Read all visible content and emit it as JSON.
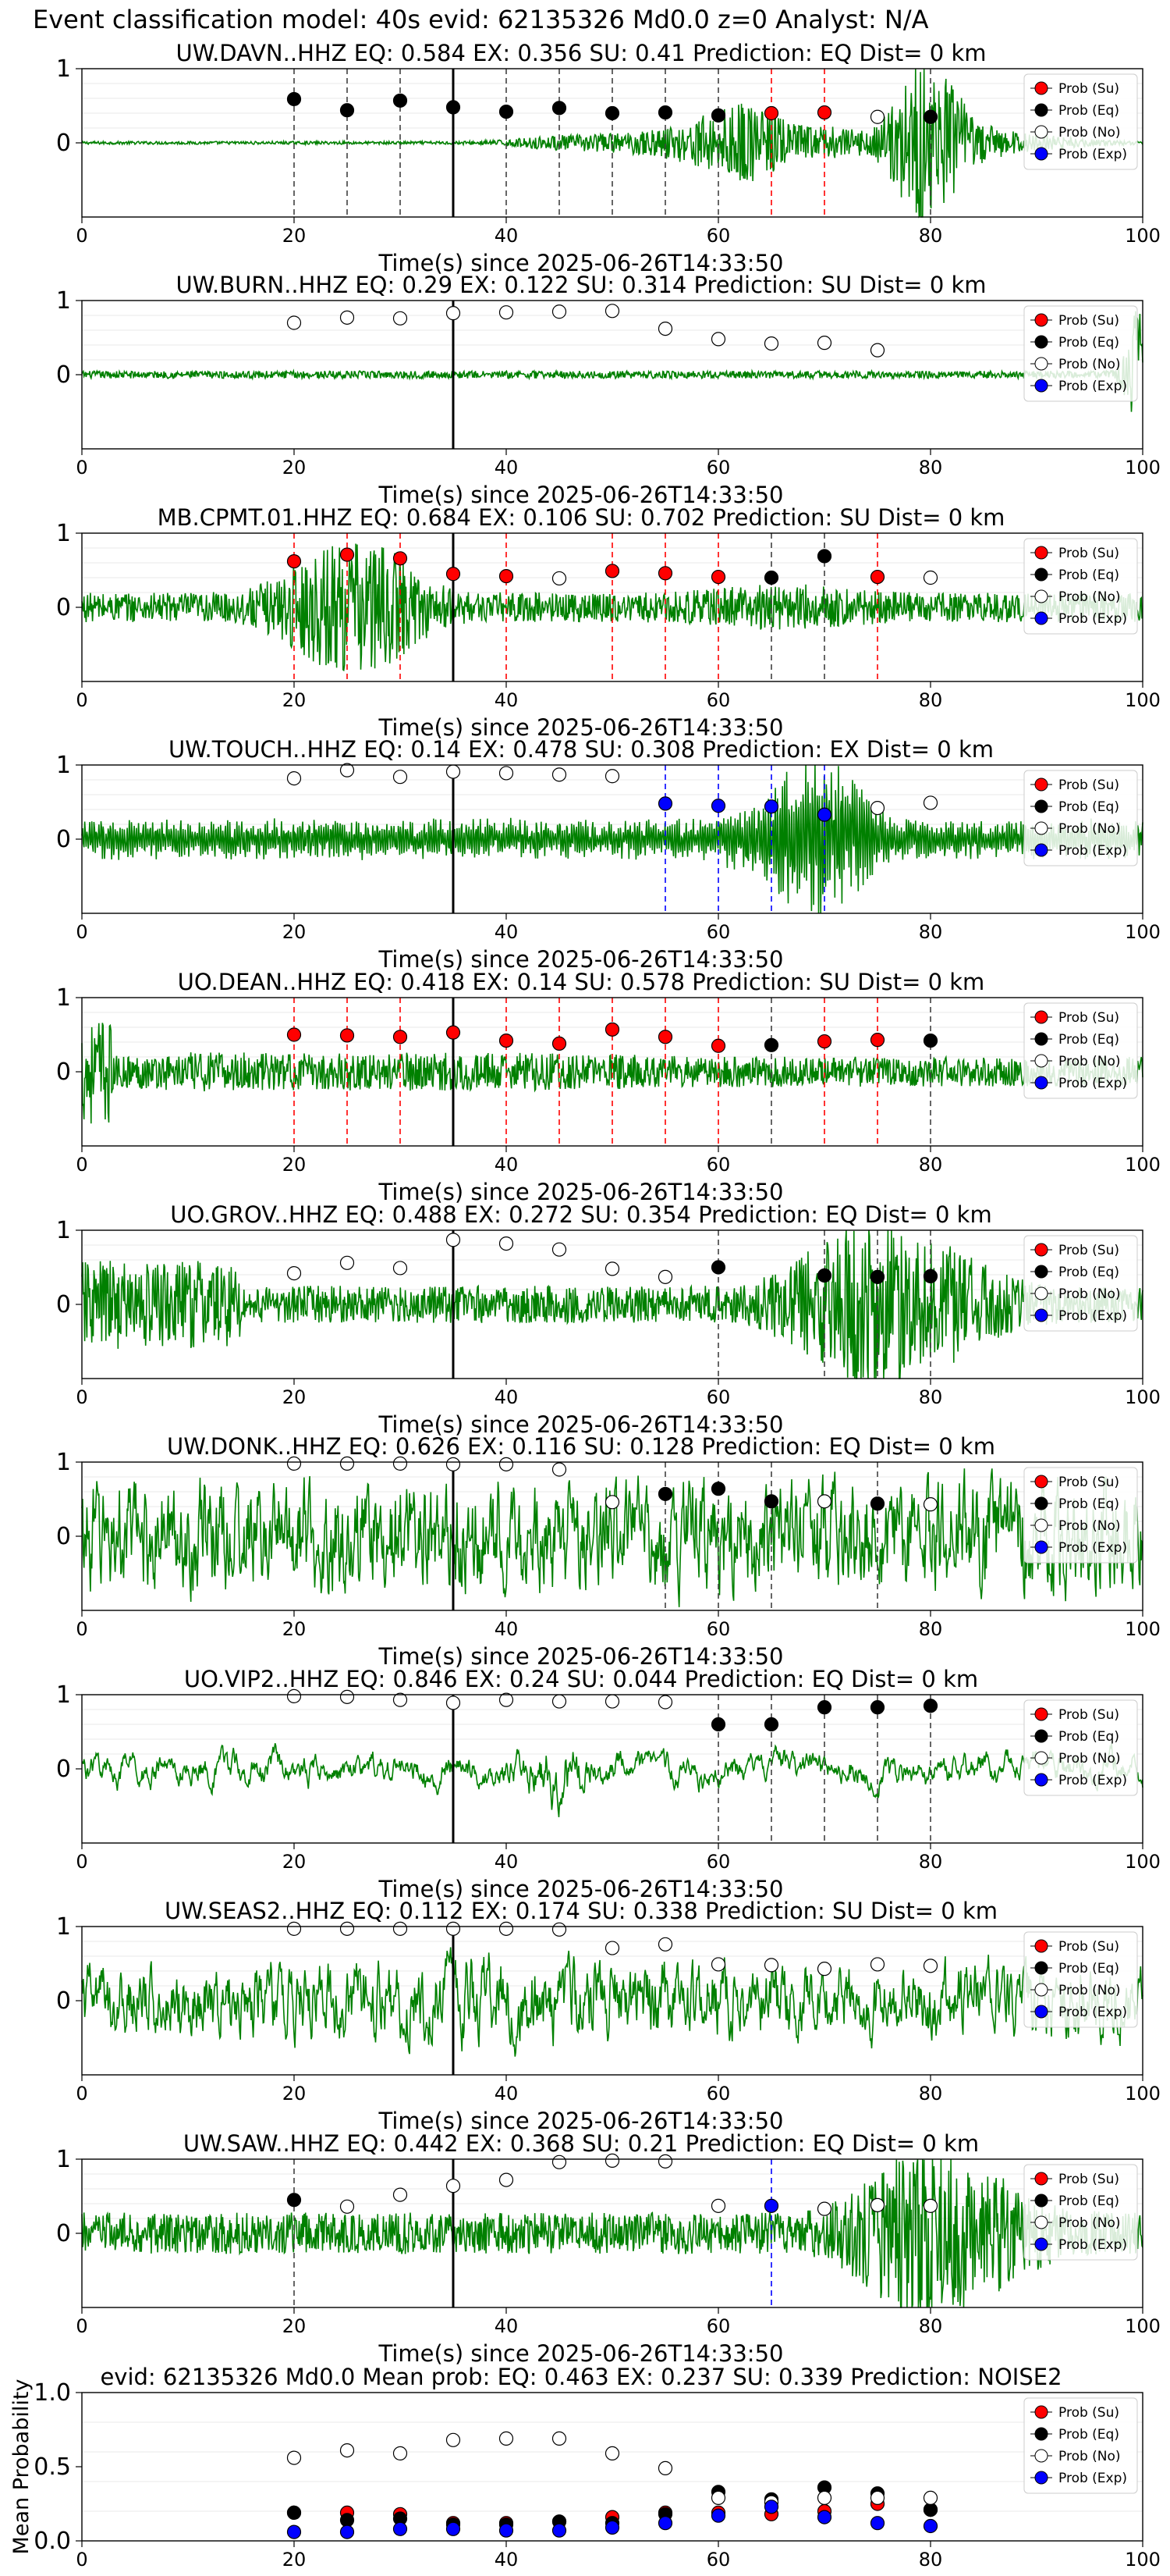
{
  "figure": {
    "suptitle": "Event classification model: 40s evid: 62135326 Md0.0 z=0 Analyst: N/A"
  },
  "colors": {
    "waveform": "#008000",
    "su": "#ff0000",
    "eq": "#000000",
    "no": "#ffffff",
    "exp": "#0000ff",
    "su_line": "#ff0000",
    "eq_line": "#404040",
    "exp_line": "#0000ff",
    "grid": "#b0b0b0"
  },
  "legend_labels": [
    "Prob (Su)",
    "Prob (Eq)",
    "Prob (No)",
    "Prob (Exp)"
  ],
  "chart_data": [
    {
      "type": "scatter",
      "title": "UW.DAVN..HHZ   EQ: 0.584  EX: 0.356  SU: 0.41   Prediction: EQ    Dist= 0 km",
      "xlabel": "Time(s) since 2025-06-26T14:33:50",
      "ylabel": "",
      "xlim": [
        0,
        100
      ],
      "ylim": [
        -1,
        1
      ],
      "xticks": [
        "0",
        "20",
        "40",
        "60",
        "80",
        "100"
      ],
      "yticks": [
        "0",
        "1"
      ],
      "legend_position": "upper right",
      "origin_line": 35,
      "waveform_profile": "davn",
      "points": [
        {
          "x": 20,
          "y": 0.59,
          "cls": "eq"
        },
        {
          "x": 25,
          "y": 0.44,
          "cls": "eq"
        },
        {
          "x": 30,
          "y": 0.57,
          "cls": "eq"
        },
        {
          "x": 35,
          "y": 0.48,
          "cls": "eq"
        },
        {
          "x": 40,
          "y": 0.42,
          "cls": "eq"
        },
        {
          "x": 45,
          "y": 0.47,
          "cls": "eq"
        },
        {
          "x": 50,
          "y": 0.4,
          "cls": "eq"
        },
        {
          "x": 55,
          "y": 0.41,
          "cls": "eq"
        },
        {
          "x": 60,
          "y": 0.37,
          "cls": "eq"
        },
        {
          "x": 65,
          "y": 0.4,
          "cls": "su"
        },
        {
          "x": 70,
          "y": 0.41,
          "cls": "su"
        },
        {
          "x": 75,
          "y": 0.35,
          "cls": "no"
        },
        {
          "x": 80,
          "y": 0.35,
          "cls": "eq"
        }
      ]
    },
    {
      "type": "scatter",
      "title": "UW.BURN..HHZ   EQ: 0.29  EX: 0.122  SU: 0.314   Prediction: SU    Dist= 0 km",
      "xlabel": "Time(s) since 2025-06-26T14:33:50",
      "ylabel": "",
      "xlim": [
        0,
        100
      ],
      "ylim": [
        -1,
        1
      ],
      "xticks": [
        "0",
        "20",
        "40",
        "60",
        "80",
        "100"
      ],
      "yticks": [
        "0",
        "1"
      ],
      "legend_position": "upper right",
      "origin_line": 35,
      "waveform_profile": "burn",
      "points": [
        {
          "x": 20,
          "y": 0.7,
          "cls": "no"
        },
        {
          "x": 25,
          "y": 0.77,
          "cls": "no"
        },
        {
          "x": 30,
          "y": 0.76,
          "cls": "no"
        },
        {
          "x": 35,
          "y": 0.83,
          "cls": "no"
        },
        {
          "x": 40,
          "y": 0.84,
          "cls": "no"
        },
        {
          "x": 45,
          "y": 0.85,
          "cls": "no"
        },
        {
          "x": 50,
          "y": 0.86,
          "cls": "no"
        },
        {
          "x": 55,
          "y": 0.62,
          "cls": "no"
        },
        {
          "x": 60,
          "y": 0.48,
          "cls": "no"
        },
        {
          "x": 65,
          "y": 0.42,
          "cls": "no"
        },
        {
          "x": 70,
          "y": 0.43,
          "cls": "no"
        },
        {
          "x": 75,
          "y": 0.33,
          "cls": "no"
        }
      ]
    },
    {
      "type": "scatter",
      "title": "MB.CPMT.01.HHZ   EQ: 0.684  EX: 0.106  SU: 0.702   Prediction: SU    Dist= 0 km",
      "xlabel": "Time(s) since 2025-06-26T14:33:50",
      "ylabel": "",
      "xlim": [
        0,
        100
      ],
      "ylim": [
        -1,
        1
      ],
      "xticks": [
        "0",
        "20",
        "40",
        "60",
        "80",
        "100"
      ],
      "yticks": [
        "0",
        "1"
      ],
      "legend_position": "upper right",
      "origin_line": 35,
      "waveform_profile": "cpmt",
      "points": [
        {
          "x": 20,
          "y": 0.62,
          "cls": "su"
        },
        {
          "x": 25,
          "y": 0.71,
          "cls": "su"
        },
        {
          "x": 30,
          "y": 0.66,
          "cls": "su"
        },
        {
          "x": 35,
          "y": 0.45,
          "cls": "su"
        },
        {
          "x": 40,
          "y": 0.42,
          "cls": "su"
        },
        {
          "x": 45,
          "y": 0.39,
          "cls": "no"
        },
        {
          "x": 50,
          "y": 0.49,
          "cls": "su"
        },
        {
          "x": 55,
          "y": 0.46,
          "cls": "su"
        },
        {
          "x": 60,
          "y": 0.41,
          "cls": "su"
        },
        {
          "x": 65,
          "y": 0.4,
          "cls": "eq"
        },
        {
          "x": 70,
          "y": 0.69,
          "cls": "eq"
        },
        {
          "x": 75,
          "y": 0.41,
          "cls": "su"
        },
        {
          "x": 80,
          "y": 0.4,
          "cls": "no"
        }
      ]
    },
    {
      "type": "scatter",
      "title": "UW.TOUCH..HHZ   EQ: 0.14  EX: 0.478  SU: 0.308   Prediction: EX    Dist= 0 km",
      "xlabel": "Time(s) since 2025-06-26T14:33:50",
      "ylabel": "",
      "xlim": [
        0,
        100
      ],
      "ylim": [
        -1,
        1
      ],
      "xticks": [
        "0",
        "20",
        "40",
        "60",
        "80",
        "100"
      ],
      "yticks": [
        "0",
        "1"
      ],
      "legend_position": "upper right",
      "origin_line": 35,
      "waveform_profile": "touch",
      "points": [
        {
          "x": 20,
          "y": 0.82,
          "cls": "no"
        },
        {
          "x": 25,
          "y": 0.93,
          "cls": "no"
        },
        {
          "x": 30,
          "y": 0.84,
          "cls": "no"
        },
        {
          "x": 35,
          "y": 0.91,
          "cls": "no"
        },
        {
          "x": 40,
          "y": 0.89,
          "cls": "no"
        },
        {
          "x": 45,
          "y": 0.87,
          "cls": "no"
        },
        {
          "x": 50,
          "y": 0.85,
          "cls": "no"
        },
        {
          "x": 55,
          "y": 0.48,
          "cls": "exp"
        },
        {
          "x": 60,
          "y": 0.45,
          "cls": "exp"
        },
        {
          "x": 65,
          "y": 0.44,
          "cls": "exp"
        },
        {
          "x": 70,
          "y": 0.33,
          "cls": "exp"
        },
        {
          "x": 75,
          "y": 0.42,
          "cls": "no"
        },
        {
          "x": 80,
          "y": 0.49,
          "cls": "no"
        }
      ]
    },
    {
      "type": "scatter",
      "title": "UO.DEAN..HHZ   EQ: 0.418  EX: 0.14  SU: 0.578   Prediction: SU    Dist= 0 km",
      "xlabel": "Time(s) since 2025-06-26T14:33:50",
      "ylabel": "",
      "xlim": [
        0,
        100
      ],
      "ylim": [
        -1,
        1
      ],
      "xticks": [
        "0",
        "20",
        "40",
        "60",
        "80",
        "100"
      ],
      "yticks": [
        "0",
        "1"
      ],
      "legend_position": "upper right",
      "origin_line": 35,
      "waveform_profile": "dean",
      "points": [
        {
          "x": 20,
          "y": 0.5,
          "cls": "su"
        },
        {
          "x": 25,
          "y": 0.49,
          "cls": "su"
        },
        {
          "x": 30,
          "y": 0.47,
          "cls": "su"
        },
        {
          "x": 35,
          "y": 0.53,
          "cls": "su"
        },
        {
          "x": 40,
          "y": 0.42,
          "cls": "su"
        },
        {
          "x": 45,
          "y": 0.38,
          "cls": "su"
        },
        {
          "x": 50,
          "y": 0.57,
          "cls": "su"
        },
        {
          "x": 55,
          "y": 0.47,
          "cls": "su"
        },
        {
          "x": 60,
          "y": 0.35,
          "cls": "su"
        },
        {
          "x": 65,
          "y": 0.36,
          "cls": "eq"
        },
        {
          "x": 70,
          "y": 0.41,
          "cls": "su"
        },
        {
          "x": 75,
          "y": 0.43,
          "cls": "su"
        },
        {
          "x": 80,
          "y": 0.42,
          "cls": "eq"
        }
      ]
    },
    {
      "type": "scatter",
      "title": "UO.GROV..HHZ   EQ: 0.488  EX: 0.272  SU: 0.354   Prediction: EQ    Dist= 0 km",
      "xlabel": "Time(s) since 2025-06-26T14:33:50",
      "ylabel": "",
      "xlim": [
        0,
        100
      ],
      "ylim": [
        -1,
        1
      ],
      "xticks": [
        "0",
        "20",
        "40",
        "60",
        "80",
        "100"
      ],
      "yticks": [
        "0",
        "1"
      ],
      "legend_position": "upper right",
      "origin_line": 35,
      "waveform_profile": "grov",
      "points": [
        {
          "x": 20,
          "y": 0.42,
          "cls": "no"
        },
        {
          "x": 25,
          "y": 0.56,
          "cls": "no"
        },
        {
          "x": 30,
          "y": 0.49,
          "cls": "no"
        },
        {
          "x": 35,
          "y": 0.87,
          "cls": "no"
        },
        {
          "x": 40,
          "y": 0.82,
          "cls": "no"
        },
        {
          "x": 45,
          "y": 0.74,
          "cls": "no"
        },
        {
          "x": 50,
          "y": 0.48,
          "cls": "no"
        },
        {
          "x": 55,
          "y": 0.37,
          "cls": "no"
        },
        {
          "x": 60,
          "y": 0.5,
          "cls": "eq"
        },
        {
          "x": 70,
          "y": 0.39,
          "cls": "eq"
        },
        {
          "x": 75,
          "y": 0.37,
          "cls": "eq"
        },
        {
          "x": 80,
          "y": 0.38,
          "cls": "eq"
        }
      ]
    },
    {
      "type": "scatter",
      "title": "UW.DONK..HHZ   EQ: 0.626  EX: 0.116  SU: 0.128   Prediction: EQ    Dist= 0 km",
      "xlabel": "Time(s) since 2025-06-26T14:33:50",
      "ylabel": "",
      "xlim": [
        0,
        100
      ],
      "ylim": [
        -1,
        1
      ],
      "xticks": [
        "0",
        "20",
        "40",
        "60",
        "80",
        "100"
      ],
      "yticks": [
        "0",
        "1"
      ],
      "legend_position": "upper right",
      "origin_line": 35,
      "waveform_profile": "donk",
      "points": [
        {
          "x": 20,
          "y": 0.98,
          "cls": "no"
        },
        {
          "x": 25,
          "y": 0.98,
          "cls": "no"
        },
        {
          "x": 30,
          "y": 0.98,
          "cls": "no"
        },
        {
          "x": 35,
          "y": 0.97,
          "cls": "no"
        },
        {
          "x": 40,
          "y": 0.97,
          "cls": "no"
        },
        {
          "x": 45,
          "y": 0.9,
          "cls": "no"
        },
        {
          "x": 50,
          "y": 0.46,
          "cls": "no"
        },
        {
          "x": 55,
          "y": 0.57,
          "cls": "eq"
        },
        {
          "x": 60,
          "y": 0.64,
          "cls": "eq"
        },
        {
          "x": 65,
          "y": 0.47,
          "cls": "eq"
        },
        {
          "x": 70,
          "y": 0.47,
          "cls": "no"
        },
        {
          "x": 75,
          "y": 0.44,
          "cls": "eq"
        },
        {
          "x": 80,
          "y": 0.43,
          "cls": "no"
        }
      ]
    },
    {
      "type": "scatter",
      "title": "UO.VIP2..HHZ   EQ: 0.846  EX: 0.24  SU: 0.044   Prediction: EQ    Dist= 0 km",
      "xlabel": "Time(s) since 2025-06-26T14:33:50",
      "ylabel": "",
      "xlim": [
        0,
        100
      ],
      "ylim": [
        -1,
        1
      ],
      "xticks": [
        "0",
        "20",
        "40",
        "60",
        "80",
        "100"
      ],
      "yticks": [
        "0",
        "1"
      ],
      "legend_position": "upper right",
      "origin_line": 35,
      "waveform_profile": "vip2",
      "points": [
        {
          "x": 20,
          "y": 0.98,
          "cls": "no"
        },
        {
          "x": 25,
          "y": 0.97,
          "cls": "no"
        },
        {
          "x": 30,
          "y": 0.93,
          "cls": "no"
        },
        {
          "x": 35,
          "y": 0.89,
          "cls": "no"
        },
        {
          "x": 40,
          "y": 0.93,
          "cls": "no"
        },
        {
          "x": 45,
          "y": 0.91,
          "cls": "no"
        },
        {
          "x": 50,
          "y": 0.91,
          "cls": "no"
        },
        {
          "x": 55,
          "y": 0.9,
          "cls": "no"
        },
        {
          "x": 60,
          "y": 0.6,
          "cls": "eq"
        },
        {
          "x": 65,
          "y": 0.6,
          "cls": "eq"
        },
        {
          "x": 70,
          "y": 0.83,
          "cls": "eq"
        },
        {
          "x": 75,
          "y": 0.83,
          "cls": "eq"
        },
        {
          "x": 80,
          "y": 0.85,
          "cls": "eq"
        }
      ]
    },
    {
      "type": "scatter",
      "title": "UW.SEAS2..HHZ   EQ: 0.112  EX: 0.174  SU: 0.338   Prediction: SU    Dist= 0 km",
      "xlabel": "Time(s) since 2025-06-26T14:33:50",
      "ylabel": "",
      "xlim": [
        0,
        100
      ],
      "ylim": [
        -1,
        1
      ],
      "xticks": [
        "0",
        "20",
        "40",
        "60",
        "80",
        "100"
      ],
      "yticks": [
        "0",
        "1"
      ],
      "legend_position": "upper right",
      "origin_line": 35,
      "waveform_profile": "seas2",
      "points": [
        {
          "x": 20,
          "y": 0.97,
          "cls": "no"
        },
        {
          "x": 25,
          "y": 0.97,
          "cls": "no"
        },
        {
          "x": 30,
          "y": 0.97,
          "cls": "no"
        },
        {
          "x": 35,
          "y": 0.97,
          "cls": "no"
        },
        {
          "x": 40,
          "y": 0.97,
          "cls": "no"
        },
        {
          "x": 45,
          "y": 0.96,
          "cls": "no"
        },
        {
          "x": 50,
          "y": 0.71,
          "cls": "no"
        },
        {
          "x": 55,
          "y": 0.76,
          "cls": "no"
        },
        {
          "x": 60,
          "y": 0.49,
          "cls": "no"
        },
        {
          "x": 65,
          "y": 0.48,
          "cls": "no"
        },
        {
          "x": 70,
          "y": 0.43,
          "cls": "no"
        },
        {
          "x": 75,
          "y": 0.49,
          "cls": "no"
        },
        {
          "x": 80,
          "y": 0.47,
          "cls": "no"
        }
      ]
    },
    {
      "type": "scatter",
      "title": "UW.SAW..HHZ   EQ: 0.442  EX: 0.368  SU: 0.21   Prediction: EQ    Dist= 0 km",
      "xlabel": "Time(s) since 2025-06-26T14:33:50",
      "ylabel": "",
      "xlim": [
        0,
        100
      ],
      "ylim": [
        -1,
        1
      ],
      "xticks": [
        "0",
        "20",
        "40",
        "60",
        "80",
        "100"
      ],
      "yticks": [
        "0",
        "1"
      ],
      "legend_position": "upper right",
      "origin_line": 35,
      "waveform_profile": "saw",
      "points": [
        {
          "x": 20,
          "y": 0.45,
          "cls": "eq"
        },
        {
          "x": 25,
          "y": 0.36,
          "cls": "no"
        },
        {
          "x": 30,
          "y": 0.52,
          "cls": "no"
        },
        {
          "x": 35,
          "y": 0.64,
          "cls": "no"
        },
        {
          "x": 40,
          "y": 0.72,
          "cls": "no"
        },
        {
          "x": 45,
          "y": 0.96,
          "cls": "no"
        },
        {
          "x": 50,
          "y": 0.98,
          "cls": "no"
        },
        {
          "x": 55,
          "y": 0.97,
          "cls": "no"
        },
        {
          "x": 60,
          "y": 0.37,
          "cls": "no"
        },
        {
          "x": 65,
          "y": 0.37,
          "cls": "exp"
        },
        {
          "x": 70,
          "y": 0.33,
          "cls": "no"
        },
        {
          "x": 75,
          "y": 0.38,
          "cls": "no"
        },
        {
          "x": 80,
          "y": 0.37,
          "cls": "no"
        }
      ]
    },
    {
      "type": "scatter",
      "title": "evid: 62135326  Md0.0   Mean prob:   EQ: 0.463  EX: 0.237  SU: 0.339   Prediction: NOISE2",
      "xlabel": "",
      "ylabel": "Mean Probability",
      "xlim": [
        0,
        100
      ],
      "ylim": [
        0,
        1
      ],
      "xticks": [
        "0",
        "20",
        "40",
        "60",
        "80",
        "100"
      ],
      "yticks": [
        "0.0",
        "0.5",
        "1.0"
      ],
      "legend_position": "upper right",
      "series": [
        {
          "name": "Prob (Su)",
          "cls": "su",
          "x": [
            20,
            25,
            30,
            35,
            40,
            45,
            50,
            55,
            60,
            65,
            70,
            75,
            80
          ],
          "values": [
            0.19,
            0.19,
            0.18,
            0.12,
            0.12,
            0.13,
            0.16,
            0.19,
            0.19,
            0.18,
            0.2,
            0.25,
            0.21
          ]
        },
        {
          "name": "Prob (Eq)",
          "cls": "eq",
          "x": [
            20,
            25,
            30,
            35,
            40,
            45,
            50,
            55,
            60,
            65,
            70,
            75,
            80
          ],
          "values": [
            0.19,
            0.14,
            0.15,
            0.11,
            0.11,
            0.13,
            0.12,
            0.18,
            0.33,
            0.28,
            0.36,
            0.32,
            0.21
          ]
        },
        {
          "name": "Prob (No)",
          "cls": "no",
          "x": [
            20,
            25,
            30,
            35,
            40,
            45,
            50,
            55,
            60,
            65,
            70,
            75,
            80
          ],
          "values": [
            0.56,
            0.61,
            0.59,
            0.68,
            0.69,
            0.69,
            0.59,
            0.49,
            0.29,
            0.26,
            0.29,
            0.29,
            0.29
          ]
        },
        {
          "name": "Prob (Exp)",
          "cls": "exp",
          "x": [
            20,
            25,
            30,
            35,
            40,
            45,
            50,
            55,
            60,
            65,
            70,
            75,
            80
          ],
          "values": [
            0.06,
            0.06,
            0.08,
            0.08,
            0.07,
            0.07,
            0.09,
            0.12,
            0.17,
            0.23,
            0.16,
            0.12,
            0.1
          ]
        }
      ]
    }
  ]
}
